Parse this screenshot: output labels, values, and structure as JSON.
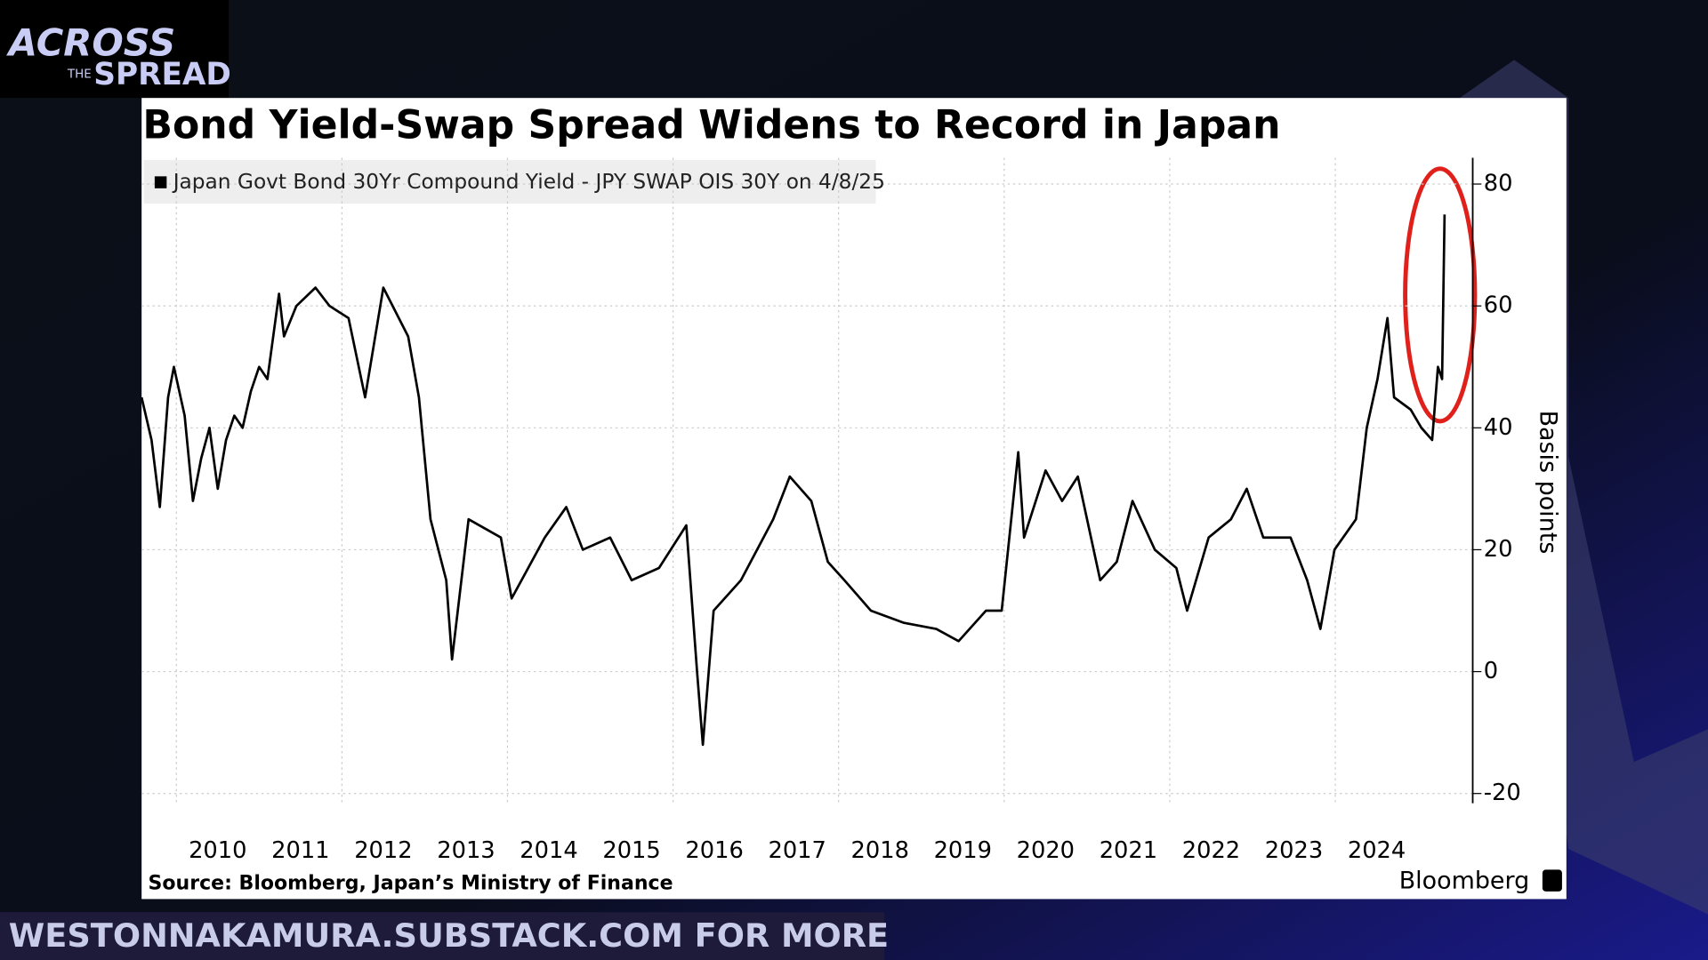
{
  "logo": {
    "line1": "ACROSS",
    "line2": "THE",
    "line3": "SPREAD"
  },
  "banner": "WESTONNAKAMURA.SUBSTACK.COM FOR MORE",
  "chart_data": {
    "type": "line",
    "title": "Bond Yield-Swap Spread Widens to Record in Japan",
    "y_label": "Basis points",
    "source": "Source: Bloomberg, Japan’s Ministry of Finance",
    "brand": "Bloomberg",
    "x": [
      2009.58,
      2009.7,
      2009.8,
      2009.9,
      2009.97,
      2010.1,
      2010.2,
      2010.3,
      2010.4,
      2010.5,
      2010.6,
      2010.7,
      2010.8,
      2010.9,
      2011.0,
      2011.1,
      2011.24,
      2011.3,
      2011.45,
      2011.68,
      2011.85,
      2012.08,
      2012.28,
      2012.5,
      2012.8,
      2012.93,
      2013.07,
      2013.26,
      2013.33,
      2013.53,
      2013.92,
      2014.05,
      2014.45,
      2014.71,
      2014.91,
      2015.24,
      2015.5,
      2015.83,
      2016.16,
      2016.29,
      2016.36,
      2016.49,
      2016.82,
      2017.21,
      2017.41,
      2017.67,
      2017.87,
      2018.07,
      2018.39,
      2018.79,
      2019.18,
      2019.45,
      2019.78,
      2019.97,
      2020.17,
      2020.24,
      2020.5,
      2020.7,
      2020.89,
      2021.16,
      2021.36,
      2021.55,
      2021.82,
      2022.08,
      2022.21,
      2022.47,
      2022.74,
      2022.93,
      2023.13,
      2023.46,
      2023.66,
      2023.82,
      2023.99,
      2024.25,
      2024.38,
      2024.51,
      2024.63,
      2024.71,
      2024.91,
      2025.04,
      2025.17,
      2025.24,
      2025.29,
      2025.32
    ],
    "series": [
      {
        "name": "Japan Govt Bond 30Yr Compound Yield - JPY SWAP OIS 30Y on 4/8/25",
        "color": "#000000",
        "values": [
          45,
          38,
          27,
          45,
          50,
          42,
          28,
          35,
          40,
          30,
          38,
          42,
          40,
          46,
          50,
          48,
          62,
          55,
          60,
          63,
          60,
          58,
          45,
          63,
          55,
          45,
          25,
          15,
          2,
          25,
          22,
          12,
          22,
          27,
          20,
          22,
          15,
          17,
          24,
          0,
          -12,
          10,
          15,
          25,
          32,
          28,
          18,
          15,
          10,
          8,
          7,
          5,
          10,
          10,
          36,
          22,
          33,
          28,
          32,
          15,
          18,
          28,
          20,
          17,
          10,
          22,
          25,
          30,
          22,
          22,
          15,
          7,
          20,
          25,
          40,
          48,
          58,
          45,
          43,
          40,
          38,
          50,
          48,
          75
        ]
      }
    ],
    "xlim": [
      2009.58,
      2025.66
    ],
    "xticks": [
      2010,
      2011,
      2012,
      2013,
      2014,
      2015,
      2016,
      2017,
      2018,
      2019,
      2020,
      2021,
      2022,
      2023,
      2024
    ],
    "ylim": [
      -21.6,
      84.3
    ],
    "yticks": [
      -20,
      0,
      20,
      40,
      60,
      80
    ],
    "grid": true
  }
}
